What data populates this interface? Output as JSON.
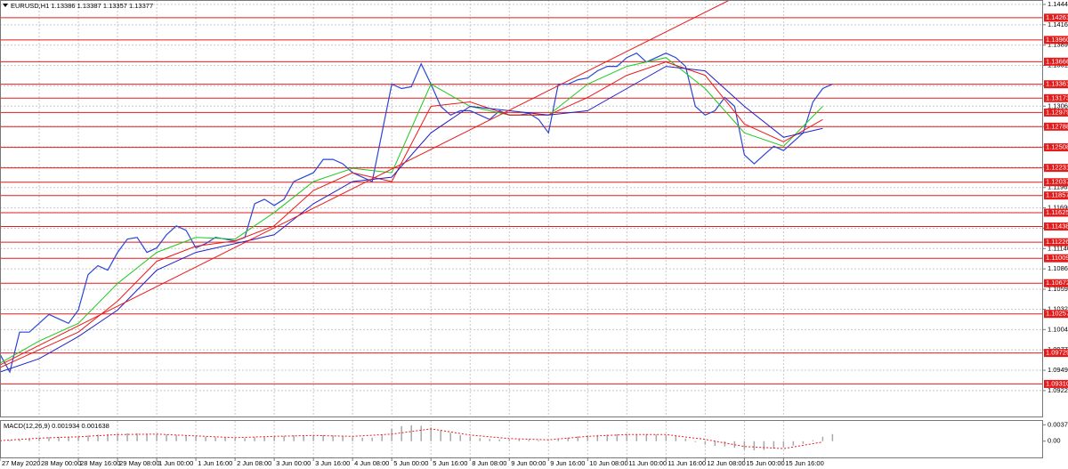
{
  "chart_data": [
    {
      "type": "line",
      "title": "EURUSD,H1  1.13386 1.13387 1.13357 1.13377",
      "xlim": [
        0,
        106.5
      ],
      "ylim": [
        1.0887,
        1.145
      ],
      "grid": true,
      "xticks": [
        {
          "value": 0,
          "label": "27 May 2020"
        },
        {
          "value": 4,
          "label": "28 May 00:00"
        },
        {
          "value": 8,
          "label": "28 May 16:00"
        },
        {
          "value": 12,
          "label": "29 May 08:00"
        },
        {
          "value": 16,
          "label": "1 Jun 00:00"
        },
        {
          "value": 20,
          "label": "1 Jun 16:00"
        },
        {
          "value": 24,
          "label": "2 Jun 08:00"
        },
        {
          "value": 28,
          "label": "3 Jun 00:00"
        },
        {
          "value": 32,
          "label": "3 Jun 16:00"
        },
        {
          "value": 36,
          "label": "4 Jun 08:00"
        },
        {
          "value": 40,
          "label": "5 Jun 00:00"
        },
        {
          "value": 44,
          "label": "5 Jun 16:00"
        },
        {
          "value": 48,
          "label": "8 Jun 08:00"
        },
        {
          "value": 52,
          "label": "9 Jun 00:00"
        },
        {
          "value": 56,
          "label": "9 Jun 16:00"
        },
        {
          "value": 60,
          "label": "10 Jun 08:00"
        },
        {
          "value": 64,
          "label": "11 Jun 00:00"
        },
        {
          "value": 68,
          "label": "11 Jun 16:00"
        },
        {
          "value": 72,
          "label": "12 Jun 08:00"
        },
        {
          "value": 76,
          "label": "15 Jun 00:00"
        },
        {
          "value": 80,
          "label": "15 Jun 16:00"
        }
      ],
      "yticks": [
        {
          "value": 1.1444,
          "label": "1.14440"
        },
        1.14165,
        {
          "value": 1.1389,
          "label": "1.13890"
        },
        1.13615,
        {
          "value": 1.1334,
          "label": "1.13340"
        },
        1.13065,
        {
          "value": 1.1279,
          "label": "1.12790"
        },
        1.12515,
        {
          "value": 1.1224,
          "label": "1.12240"
        },
        1.11965,
        {
          "value": 1.1169,
          "label": "1.11690"
        },
        1.11415,
        {
          "value": 1.1114,
          "label": "1.11140"
        },
        1.10865,
        {
          "value": 1.1059,
          "label": "1.10590"
        },
        {
          "value": 1.1032,
          "label": "1.10320"
        },
        1.10045,
        {
          "value": 1.0977,
          "label": "1.09770"
        },
        1.09495,
        {
          "value": 1.0922,
          "label": "1.09220"
        }
      ],
      "levels": {
        "color": "#e41b1b",
        "values": [
          1.14261,
          {
            "value": 1.1396,
            "label": "1.13960"
          },
          1.13666,
          1.13361,
          1.13173,
          1.12979,
          1.12788,
          1.12508,
          1.12231,
          1.12037,
          1.11857,
          1.11625,
          1.11438,
          1.11226,
          1.11009,
          1.10672,
          1.10257,
          1.09729,
          {
            "value": 1.0931,
            "label": "1.09310"
          }
        ]
      },
      "series": [
        {
          "color": "#2a47d4",
          "width": 1.2,
          "x": [
            0,
            1,
            2,
            3,
            4,
            5,
            6,
            7,
            8,
            9,
            10,
            11,
            12,
            13,
            14,
            15,
            16,
            17,
            18,
            19,
            20,
            21,
            22,
            23,
            24,
            25,
            26,
            27,
            28,
            29,
            30,
            31,
            32,
            33,
            34,
            35,
            36,
            37,
            38,
            39,
            40,
            41,
            42,
            43,
            44,
            45,
            46,
            47,
            48,
            49,
            50,
            51,
            52,
            53,
            54,
            55,
            56,
            57,
            58,
            59,
            60,
            61,
            62,
            63,
            64,
            65,
            66,
            67,
            68,
            69,
            70,
            71,
            72,
            73,
            74,
            75,
            76,
            77,
            78,
            79,
            80,
            81,
            82,
            83,
            84,
            85
          ],
          "values": [
            1.09711,
            1.09471,
            1.1001,
            1.1001,
            1.1013,
            1.1025,
            1.1019,
            1.1013,
            1.10309,
            1.10788,
            1.10908,
            1.10848,
            1.11088,
            1.11267,
            1.11291,
            1.11088,
            1.11148,
            1.11327,
            1.11447,
            1.11387,
            1.11148,
            1.11207,
            1.11291,
            1.11267,
            1.11243,
            1.11291,
            1.11746,
            1.11806,
            1.11722,
            1.11806,
            1.12046,
            1.12105,
            1.12165,
            1.12345,
            1.12345,
            1.12285,
            1.12165,
            1.12105,
            1.12046,
            1.12704,
            1.13363,
            1.13303,
            1.13327,
            1.13638,
            1.13363,
            1.13063,
            1.12944,
            1.13003,
            1.13003,
            1.12944,
            1.12884,
            1.13003,
            1.12944,
            1.12944,
            1.12967,
            1.12884,
            1.12704,
            1.13363,
            1.13363,
            1.13422,
            1.13446,
            1.13542,
            1.13602,
            1.13602,
            1.13722,
            1.13782,
            1.13662,
            1.13722,
            1.13782,
            1.13722,
            1.13602,
            1.13063,
            1.12944,
            1.13003,
            1.13183,
            1.13063,
            1.12405,
            1.12285,
            1.12405,
            1.12524,
            1.12465,
            1.12584,
            1.12704,
            1.13123,
            1.13303,
            1.13363
          ]
        },
        {
          "color": "#1ec81e",
          "width": 1,
          "x": [
            0,
            4,
            8,
            12,
            16,
            20,
            24,
            28,
            32,
            36,
            40,
            44,
            48,
            52,
            56,
            60,
            64,
            68,
            72,
            76,
            80,
            84
          ],
          "values": [
            1.09591,
            1.0989,
            1.1013,
            1.10669,
            1.11088,
            1.11291,
            1.11267,
            1.11627,
            1.12046,
            1.12225,
            1.12165,
            1.13363,
            1.13063,
            1.12944,
            1.12944,
            1.13363,
            1.13602,
            1.13722,
            1.13303,
            1.12704,
            1.12524,
            1.13063
          ]
        },
        {
          "color": "#e81c1c",
          "width": 1,
          "x": [
            0,
            4,
            8,
            12,
            16,
            20,
            24,
            28,
            32,
            36,
            40,
            44,
            48,
            52,
            56,
            60,
            64,
            68,
            72,
            76,
            80,
            84
          ],
          "values": [
            1.09531,
            1.09771,
            1.1001,
            1.10429,
            1.10968,
            1.11172,
            1.11243,
            1.11447,
            1.11926,
            1.12165,
            1.12046,
            1.13063,
            1.13123,
            1.12944,
            1.12944,
            1.13183,
            1.13482,
            1.13662,
            1.13482,
            1.12824,
            1.12584,
            1.12884
          ]
        },
        {
          "color": "#2020c8",
          "width": 1,
          "x": [
            0,
            4,
            8,
            12,
            16,
            20,
            24,
            28,
            32,
            36,
            40,
            44,
            48,
            52,
            56,
            60,
            64,
            68,
            72,
            76,
            80,
            84
          ],
          "values": [
            1.09471,
            1.09651,
            1.0995,
            1.10309,
            1.10848,
            1.11088,
            1.11207,
            1.11327,
            1.11746,
            1.12046,
            1.12105,
            1.12704,
            1.13063,
            1.13003,
            1.12944,
            1.13003,
            1.13303,
            1.13602,
            1.13542,
            1.13063,
            1.12644,
            1.12764
          ]
        },
        {
          "color": "#e81c1c",
          "width": 1,
          "x": [
            0,
            74.5
          ],
          "values": [
            1.09567,
            1.145
          ]
        }
      ]
    },
    {
      "type": "bar",
      "title": "MACD(12,26,9) 0.001934 0.001638",
      "xlim": [
        0,
        106.5
      ],
      "ylim": [
        -0.0039,
        0.0048
      ],
      "yticks": [
        0.003723,
        {
          "value": 0,
          "label": "0.00"
        }
      ],
      "color": "#a8a8a8",
      "x": [
        0,
        1,
        2,
        3,
        4,
        5,
        6,
        7,
        8,
        9,
        10,
        11,
        12,
        13,
        14,
        15,
        16,
        17,
        18,
        19,
        20,
        21,
        22,
        23,
        24,
        25,
        26,
        27,
        28,
        29,
        30,
        31,
        32,
        33,
        34,
        35,
        36,
        37,
        38,
        39,
        40,
        41,
        42,
        43,
        44,
        45,
        46,
        47,
        48,
        49,
        50,
        51,
        52,
        53,
        54,
        55,
        56,
        57,
        58,
        59,
        60,
        61,
        62,
        63,
        64,
        65,
        66,
        67,
        68,
        69,
        70,
        71,
        72,
        73,
        74,
        75,
        76,
        77,
        78,
        79,
        80,
        81,
        82,
        83,
        84,
        85
      ],
      "values": [
        0.0001,
        0.0002,
        0.0004,
        0.0006,
        0.0008,
        0.0009,
        0.001,
        0.001,
        0.0011,
        0.0013,
        0.0015,
        0.0016,
        0.0017,
        0.0018,
        0.0018,
        0.0017,
        0.0016,
        0.0015,
        0.0014,
        0.0013,
        0.0011,
        0.001,
        0.0009,
        0.0008,
        0.0007,
        0.0007,
        0.0009,
        0.001,
        0.0011,
        0.0012,
        0.0013,
        0.0013,
        0.0014,
        0.0014,
        0.0013,
        0.0011,
        0.0009,
        0.0008,
        0.0008,
        0.0015,
        0.0028,
        0.0034,
        0.0036,
        0.0035,
        0.0031,
        0.0025,
        0.0019,
        0.0014,
        0.001,
        0.0007,
        0.0005,
        0.0004,
        0.0004,
        0.0004,
        0.0003,
        0.0002,
        0.0001,
        0.0004,
        0.0008,
        0.0011,
        0.0013,
        0.0014,
        0.0015,
        0.0016,
        0.0016,
        0.0016,
        0.0016,
        0.0015,
        0.0014,
        0.0012,
        0.0006,
        -0.0002,
        -0.0008,
        -0.0011,
        -0.0012,
        -0.0015,
        -0.0019,
        -0.0021,
        -0.002,
        -0.0017,
        -0.0014,
        -0.001,
        -0.0006,
        0.0002,
        0.001,
        0.0016
      ],
      "signal": {
        "color": "#e81c1c",
        "x": [
          0,
          4,
          8,
          12,
          16,
          20,
          24,
          28,
          32,
          36,
          40,
          44,
          48,
          52,
          56,
          60,
          64,
          68,
          72,
          76,
          80,
          84
        ],
        "values": [
          0.0001,
          0.0007,
          0.001,
          0.0015,
          0.0016,
          0.0012,
          0.0008,
          0.0011,
          0.0013,
          0.0011,
          0.0016,
          0.0028,
          0.0014,
          0.0006,
          0.0003,
          0.0011,
          0.0015,
          0.0015,
          0.0004,
          -0.0012,
          -0.0017,
          -0.0002
        ]
      }
    }
  ]
}
